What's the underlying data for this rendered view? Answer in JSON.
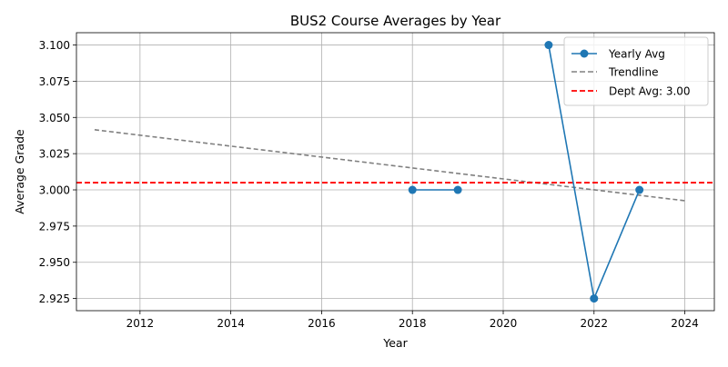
{
  "chart_data": {
    "type": "line",
    "title": "BUS2 Course Averages by Year",
    "xlabel": "Year",
    "ylabel": "Average Grade",
    "xlim": [
      2010.6,
      2024.65
    ],
    "ylim": [
      2.9166,
      3.1085
    ],
    "x_ticks": [
      2012,
      2014,
      2016,
      2018,
      2020,
      2022,
      2024
    ],
    "y_ticks": [
      2.925,
      2.95,
      2.975,
      3.0,
      3.025,
      3.05,
      3.075,
      3.1
    ],
    "y_tick_decimals": 3,
    "grid": true,
    "legend_position": "top-right",
    "series": [
      {
        "name": "Yearly Avg",
        "style": "solid-marker",
        "color": "#1f77b4",
        "segments": [
          [
            {
              "x": 2018,
              "y": 3.0
            },
            {
              "x": 2019,
              "y": 3.0
            }
          ],
          [
            {
              "x": 2021,
              "y": 3.1
            },
            {
              "x": 2022,
              "y": 2.925
            },
            {
              "x": 2023,
              "y": 3.0
            }
          ]
        ]
      },
      {
        "name": "Trendline",
        "style": "dashed",
        "color": "#808080",
        "points": [
          {
            "x": 2011,
            "y": 3.0415
          },
          {
            "x": 2024,
            "y": 2.9925
          }
        ]
      },
      {
        "name": "Dept Avg: 3.00",
        "style": "dashed-hline",
        "color": "#ff0000",
        "y": 3.005
      }
    ]
  }
}
